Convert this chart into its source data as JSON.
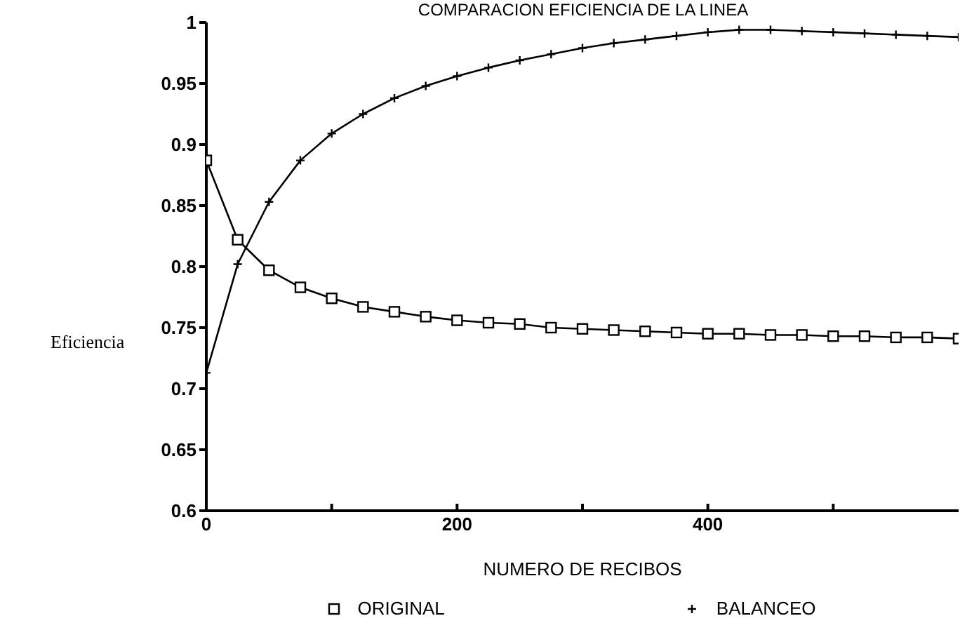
{
  "chart_data": {
    "type": "line",
    "title": "COMPARACION  EFICIENCIA DE LA LINEA",
    "xlabel": "NUMERO DE RECIBOS",
    "ylabel": "Eficiencia",
    "x": [
      0,
      25,
      50,
      75,
      100,
      125,
      150,
      175,
      200,
      225,
      250,
      275,
      300,
      325,
      350,
      375,
      400,
      425,
      450,
      475,
      500,
      525,
      550,
      575,
      600
    ],
    "series": [
      {
        "name": "ORIGINAL",
        "color": "#000000",
        "marker": "square",
        "values": [
          0.887,
          0.822,
          0.797,
          0.783,
          0.774,
          0.767,
          0.763,
          0.759,
          0.756,
          0.754,
          0.753,
          0.75,
          0.749,
          0.748,
          0.747,
          0.746,
          0.745,
          0.745,
          0.744,
          0.744,
          0.743,
          0.743,
          0.742,
          0.742,
          0.741
        ]
      },
      {
        "name": "BALANCEO",
        "color": "#000000",
        "marker": "cross",
        "values": [
          0.713,
          0.802,
          0.853,
          0.887,
          0.909,
          0.925,
          0.938,
          0.948,
          0.956,
          0.963,
          0.969,
          0.974,
          0.979,
          0.983,
          0.986,
          0.989,
          0.992,
          0.994,
          0.994,
          0.993,
          0.992,
          0.991,
          0.99,
          0.989,
          0.988
        ]
      }
    ],
    "xlim": [
      0,
      600
    ],
    "xticks": [
      0,
      {
        "value": 100,
        "label": null
      },
      200,
      {
        "value": 300,
        "label": null
      },
      400,
      {
        "value": 500,
        "label": null
      }
    ],
    "ylim": [
      0.6,
      1
    ],
    "yticks": [
      0.6,
      0.65,
      0.7,
      0.75,
      0.8,
      0.85,
      0.9,
      0.95,
      1
    ],
    "grid": false,
    "legend": "bottom",
    "line_style": "solid"
  }
}
